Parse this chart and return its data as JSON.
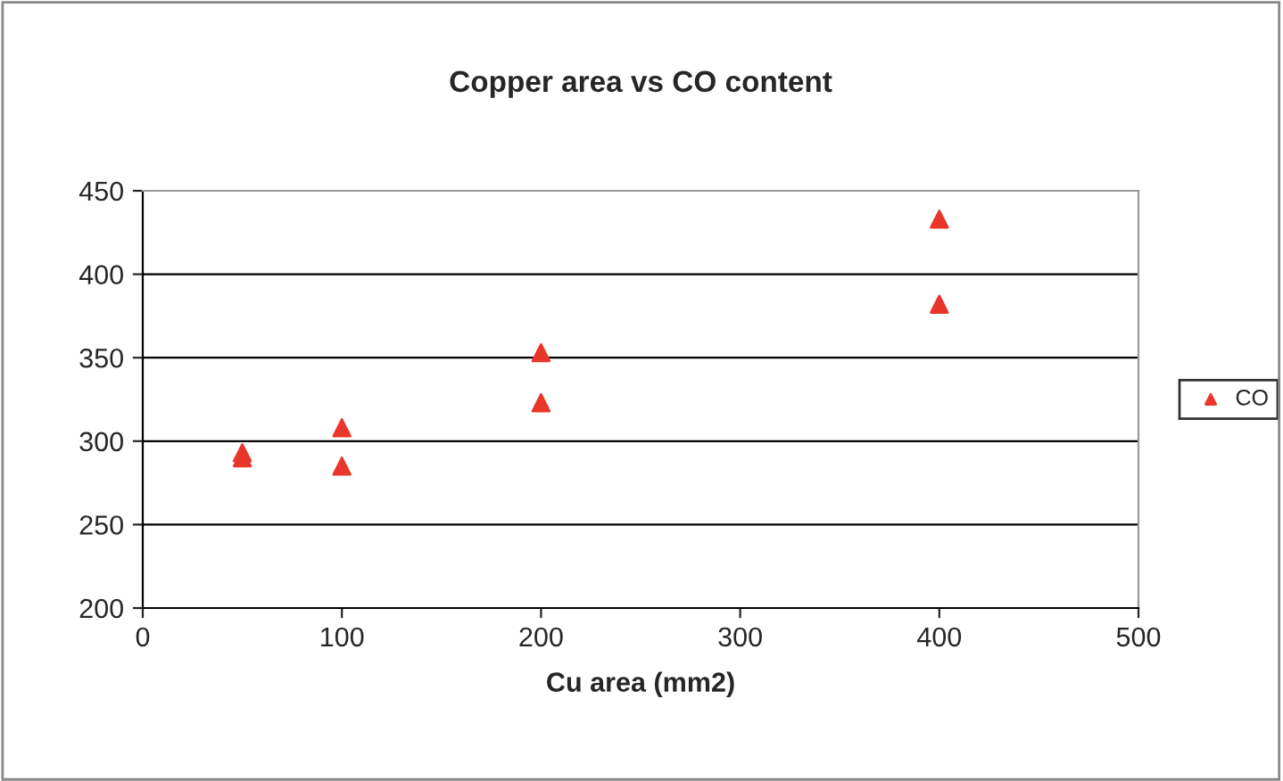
{
  "chart_data": {
    "type": "scatter",
    "title": "Copper area vs CO content",
    "xlabel": "Cu area (mm2)",
    "x": [
      50,
      50,
      100,
      100,
      200,
      200,
      400,
      400
    ],
    "series": [
      {
        "name": "CO",
        "color": "#e8372a",
        "values": [
          290,
          293,
          308,
          285,
          353,
          323,
          433,
          382
        ]
      }
    ],
    "xlim": [
      0,
      500
    ],
    "xticks": [
      0,
      100,
      200,
      300,
      400,
      500
    ],
    "ylim": [
      200,
      450
    ],
    "yticks": [
      200,
      250,
      300,
      350,
      400,
      450
    ],
    "grid": "y",
    "legend": "right",
    "marker": "triangle"
  }
}
